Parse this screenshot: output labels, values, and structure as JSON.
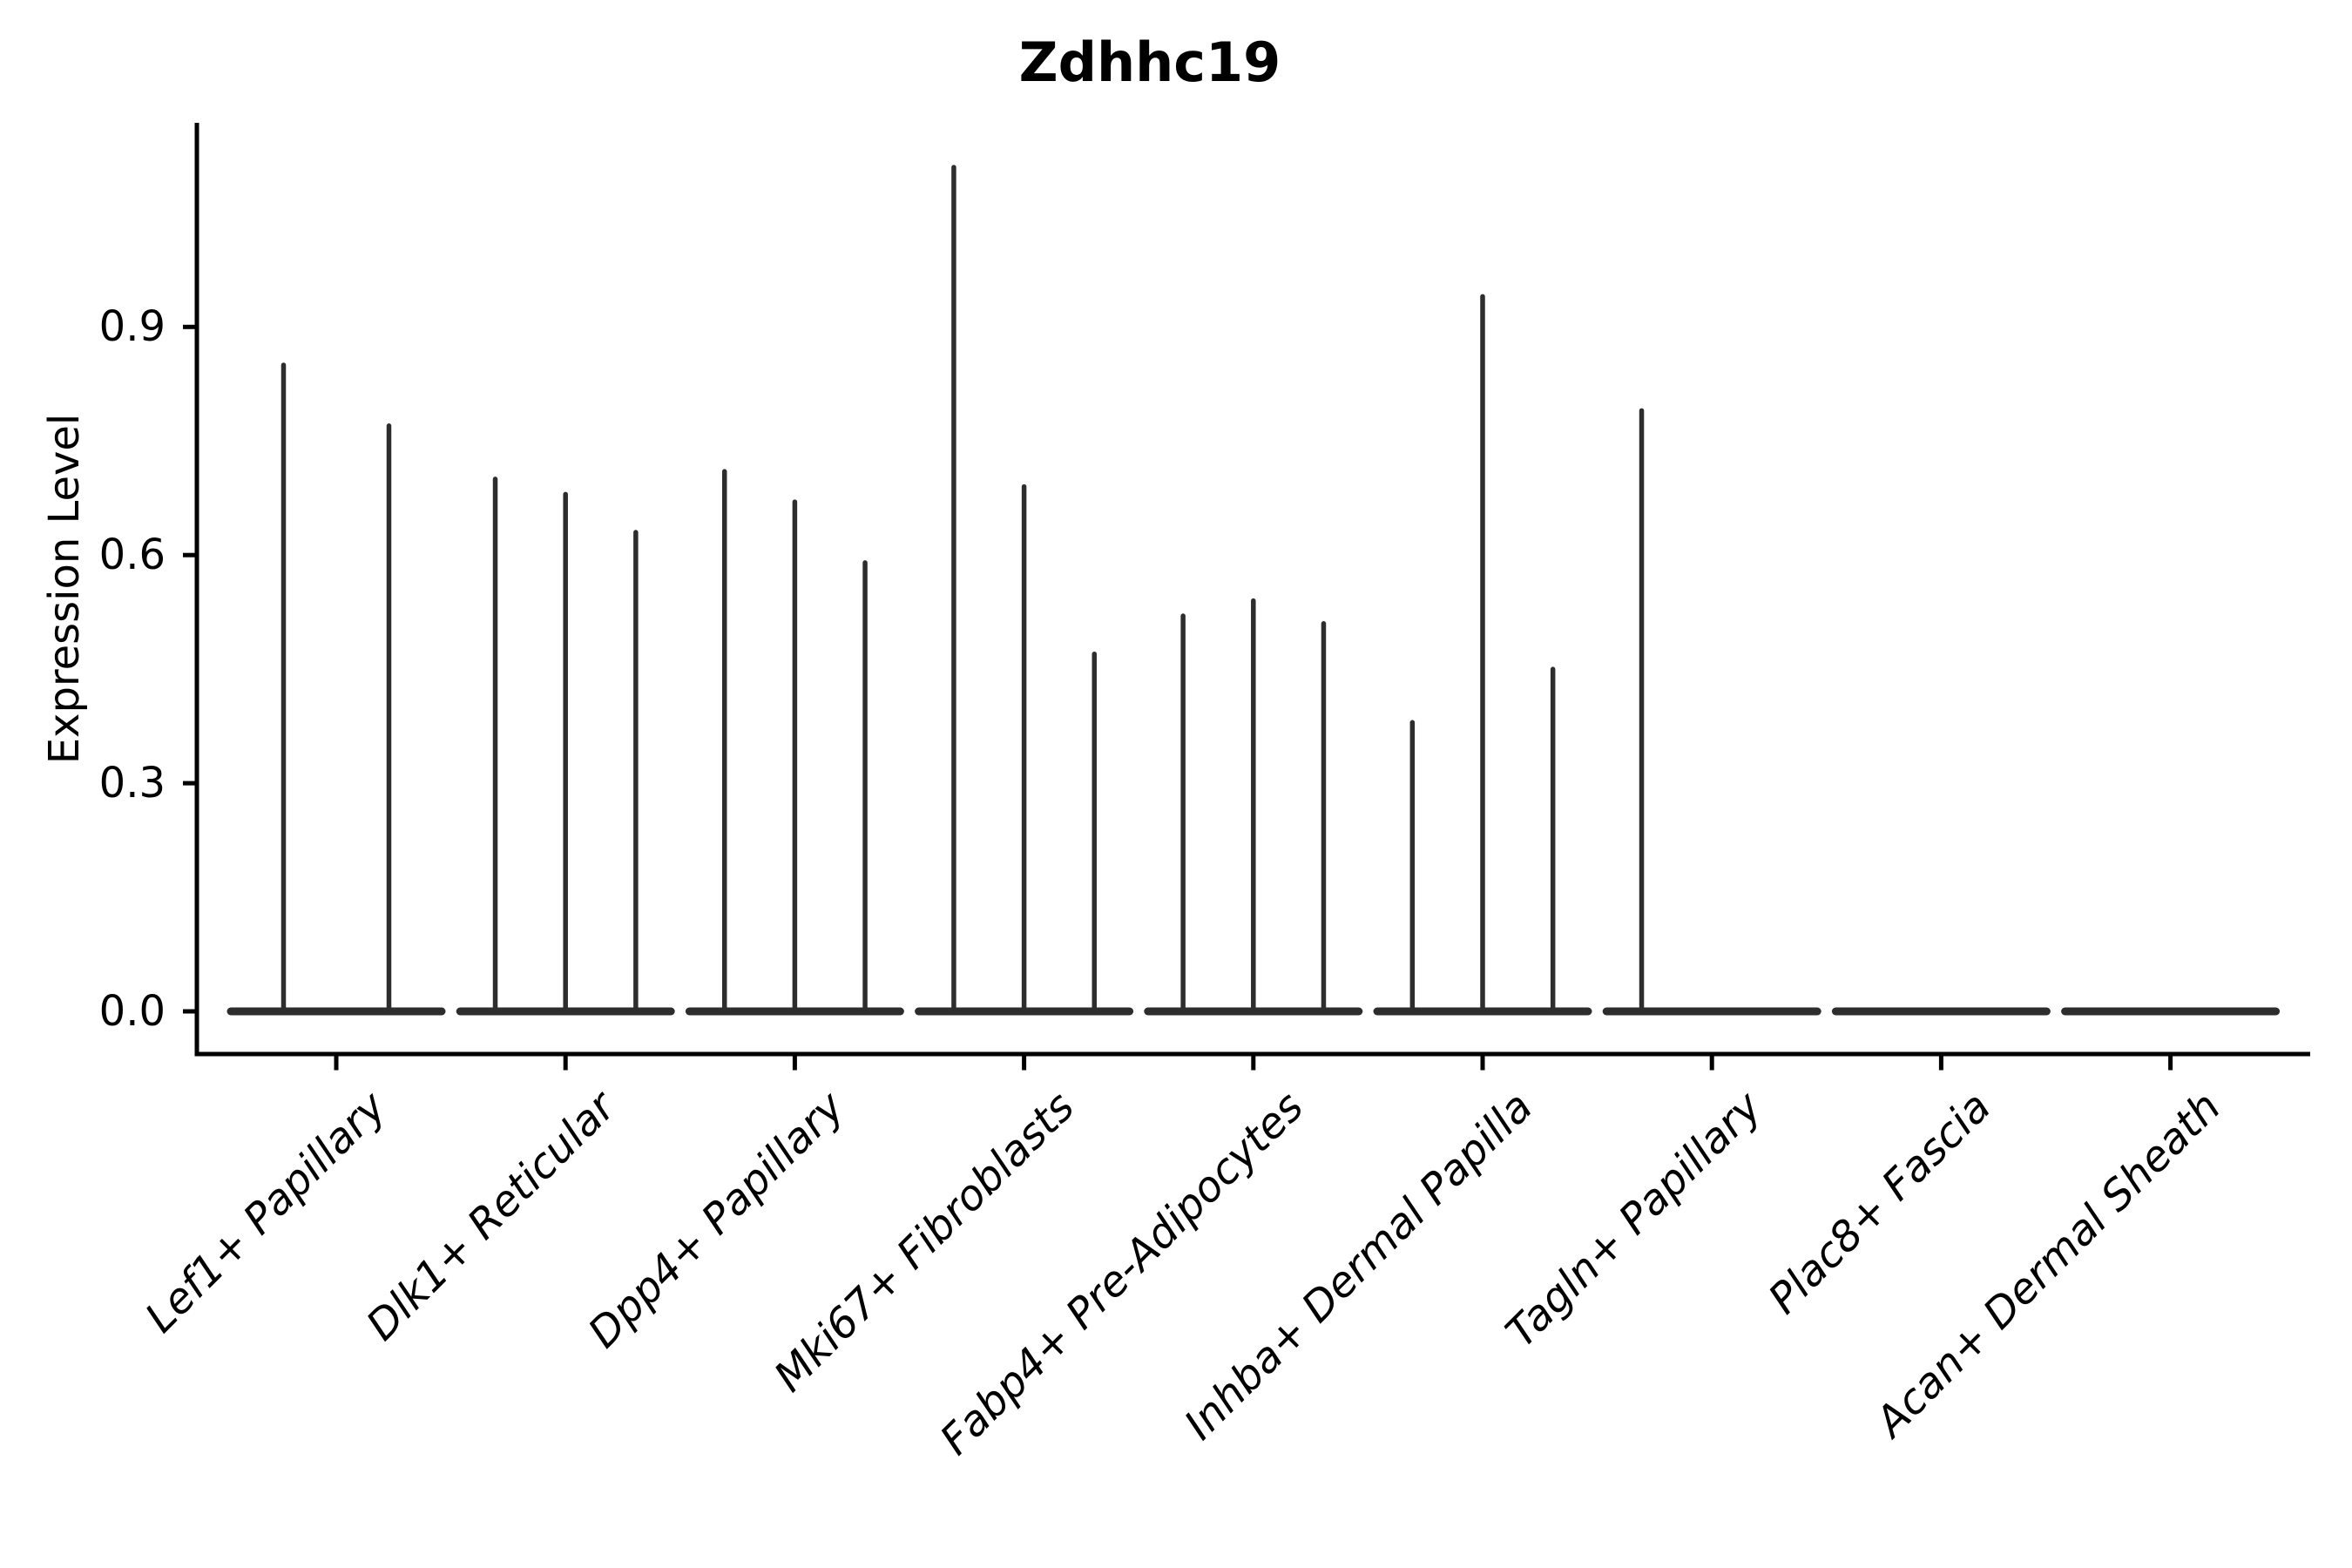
{
  "chart": {
    "title": "Zdhhc19",
    "ylabel": "Expression Level",
    "background_color": "#ffffff",
    "violin_color": "#2d2d2d",
    "axis_color": "#000000"
  },
  "chart_data": {
    "type": "violin",
    "title": "Zdhhc19",
    "xlabel": "",
    "ylabel": "Expression Level",
    "ylim": [
      0,
      1.17
    ],
    "ytick_values": [
      0,
      0.3,
      0.6,
      0.9
    ],
    "ytick_labels": [
      "0.0",
      "0.3",
      "0.6",
      "0.9"
    ],
    "grid": false,
    "legend": false,
    "categories": [
      "Lef1+ Papillary",
      "Dlk1+ Reticular",
      "Dpp4+ Papillary",
      "Mki67+ Fibroblasts",
      "Fabp4+ Pre-Adipocytes",
      "Inhba+ Dermal Papilla",
      "Tagln+ Papillary",
      "Plac8+ Fascia",
      "Acan+ Dermal Sheath"
    ],
    "groups": [
      {
        "category": "Lef1+ Papillary",
        "violin_max": [
          0.85,
          0.77
        ]
      },
      {
        "category": "Dlk1+ Reticular",
        "violin_max": [
          0.7,
          0.68,
          0.63
        ]
      },
      {
        "category": "Dpp4+ Papillary",
        "violin_max": [
          0.71,
          0.67,
          0.59
        ]
      },
      {
        "category": "Mki67+ Fibroblasts",
        "violin_max": [
          1.11,
          0.69,
          0.47
        ]
      },
      {
        "category": "Fabp4+ Pre-Adipocytes",
        "violin_max": [
          0.52,
          0.54,
          0.51
        ]
      },
      {
        "category": "Inhba+ Dermal Papilla",
        "violin_max": [
          0.38,
          0.94,
          0.45
        ]
      },
      {
        "category": "Tagln+ Papillary",
        "violin_max": [
          0.79,
          0.0,
          0.0
        ]
      },
      {
        "category": "Plac8+ Fascia",
        "violin_max": [
          0.0,
          0.0,
          0.0
        ]
      },
      {
        "category": "Acan+ Dermal Sheath",
        "violin_max": [
          0.0,
          0.0,
          0.0
        ]
      }
    ]
  }
}
